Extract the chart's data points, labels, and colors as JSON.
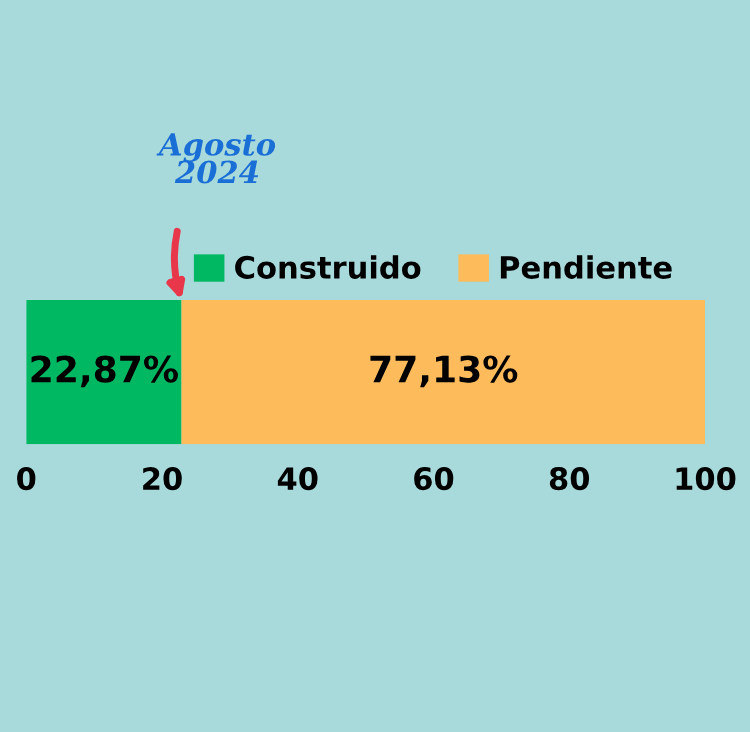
{
  "chart_data": {
    "type": "bar",
    "orientation": "horizontal",
    "stacked": true,
    "categories": [
      null
    ],
    "series": [
      {
        "name": "Construido",
        "color": "#00b862",
        "values": [
          22.87
        ],
        "value_labels": [
          "22,87%"
        ]
      },
      {
        "name": "Pendiente",
        "color": "#fdbb5c",
        "values": [
          77.13
        ],
        "value_labels": [
          "77,13%"
        ]
      }
    ],
    "xlim": [
      0,
      100
    ],
    "xticks": [
      0,
      20,
      40,
      60,
      80,
      100
    ],
    "grid": false,
    "legend": "top",
    "annotations": [
      "Agosto\n2024"
    ]
  }
}
